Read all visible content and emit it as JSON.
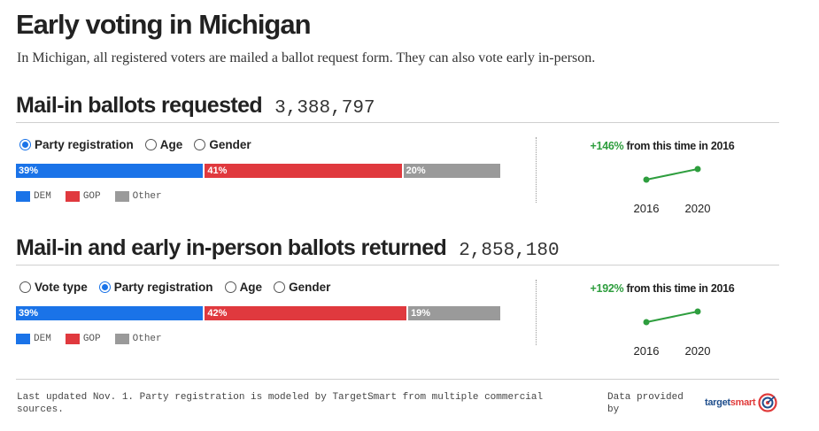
{
  "header": {
    "title": "Early voting in Michigan",
    "subtitle": "In Michigan, all registered voters are mailed a ballot request form. They can also vote early in-person."
  },
  "colors": {
    "dem": "#1a73e8",
    "gop": "#e0393e",
    "other": "#9a9a9a",
    "trend": "#2e9e3e"
  },
  "sections": [
    {
      "title": "Mail-in ballots requested",
      "total": "3,388,797",
      "options": [
        {
          "label": "Party registration",
          "selected": true
        },
        {
          "label": "Age",
          "selected": false
        },
        {
          "label": "Gender",
          "selected": false
        }
      ],
      "segments": [
        {
          "key": "dem",
          "label": "39%",
          "value": 39
        },
        {
          "key": "gop",
          "label": "41%",
          "value": 41
        },
        {
          "key": "other",
          "label": "20%",
          "value": 20
        }
      ],
      "legend": [
        "DEM",
        "GOP",
        "Other"
      ],
      "trend_pct": "+146%",
      "trend_text": "from this time in 2016",
      "years": [
        "2016",
        "2020"
      ]
    },
    {
      "title": "Mail-in and early in-person ballots returned",
      "total": "2,858,180",
      "options": [
        {
          "label": "Vote type",
          "selected": false
        },
        {
          "label": "Party registration",
          "selected": true
        },
        {
          "label": "Age",
          "selected": false
        },
        {
          "label": "Gender",
          "selected": false
        }
      ],
      "segments": [
        {
          "key": "dem",
          "label": "39%",
          "value": 39
        },
        {
          "key": "gop",
          "label": "42%",
          "value": 42
        },
        {
          "key": "other",
          "label": "19%",
          "value": 19
        }
      ],
      "legend": [
        "DEM",
        "GOP",
        "Other"
      ],
      "trend_pct": "+192%",
      "trend_text": "from this time in 2016",
      "years": [
        "2016",
        "2020"
      ]
    }
  ],
  "chart_data": [
    {
      "type": "bar",
      "title": "Mail-in ballots requested",
      "categories": [
        "DEM",
        "GOP",
        "Other"
      ],
      "values": [
        39,
        41,
        20
      ]
    },
    {
      "type": "line",
      "x": [
        "2016",
        "2020"
      ],
      "title": "+146% from this time in 2016"
    },
    {
      "type": "bar",
      "title": "Mail-in and early in-person ballots returned",
      "categories": [
        "DEM",
        "GOP",
        "Other"
      ],
      "values": [
        39,
        42,
        19
      ]
    },
    {
      "type": "line",
      "x": [
        "2016",
        "2020"
      ],
      "title": "+192% from this time in 2016"
    }
  ],
  "footer": {
    "note": "Last updated Nov. 1. Party registration is modeled by TargetSmart from multiple commercial sources.",
    "provided": "Data provided by",
    "logo_main": "target",
    "logo_accent": "smart"
  }
}
